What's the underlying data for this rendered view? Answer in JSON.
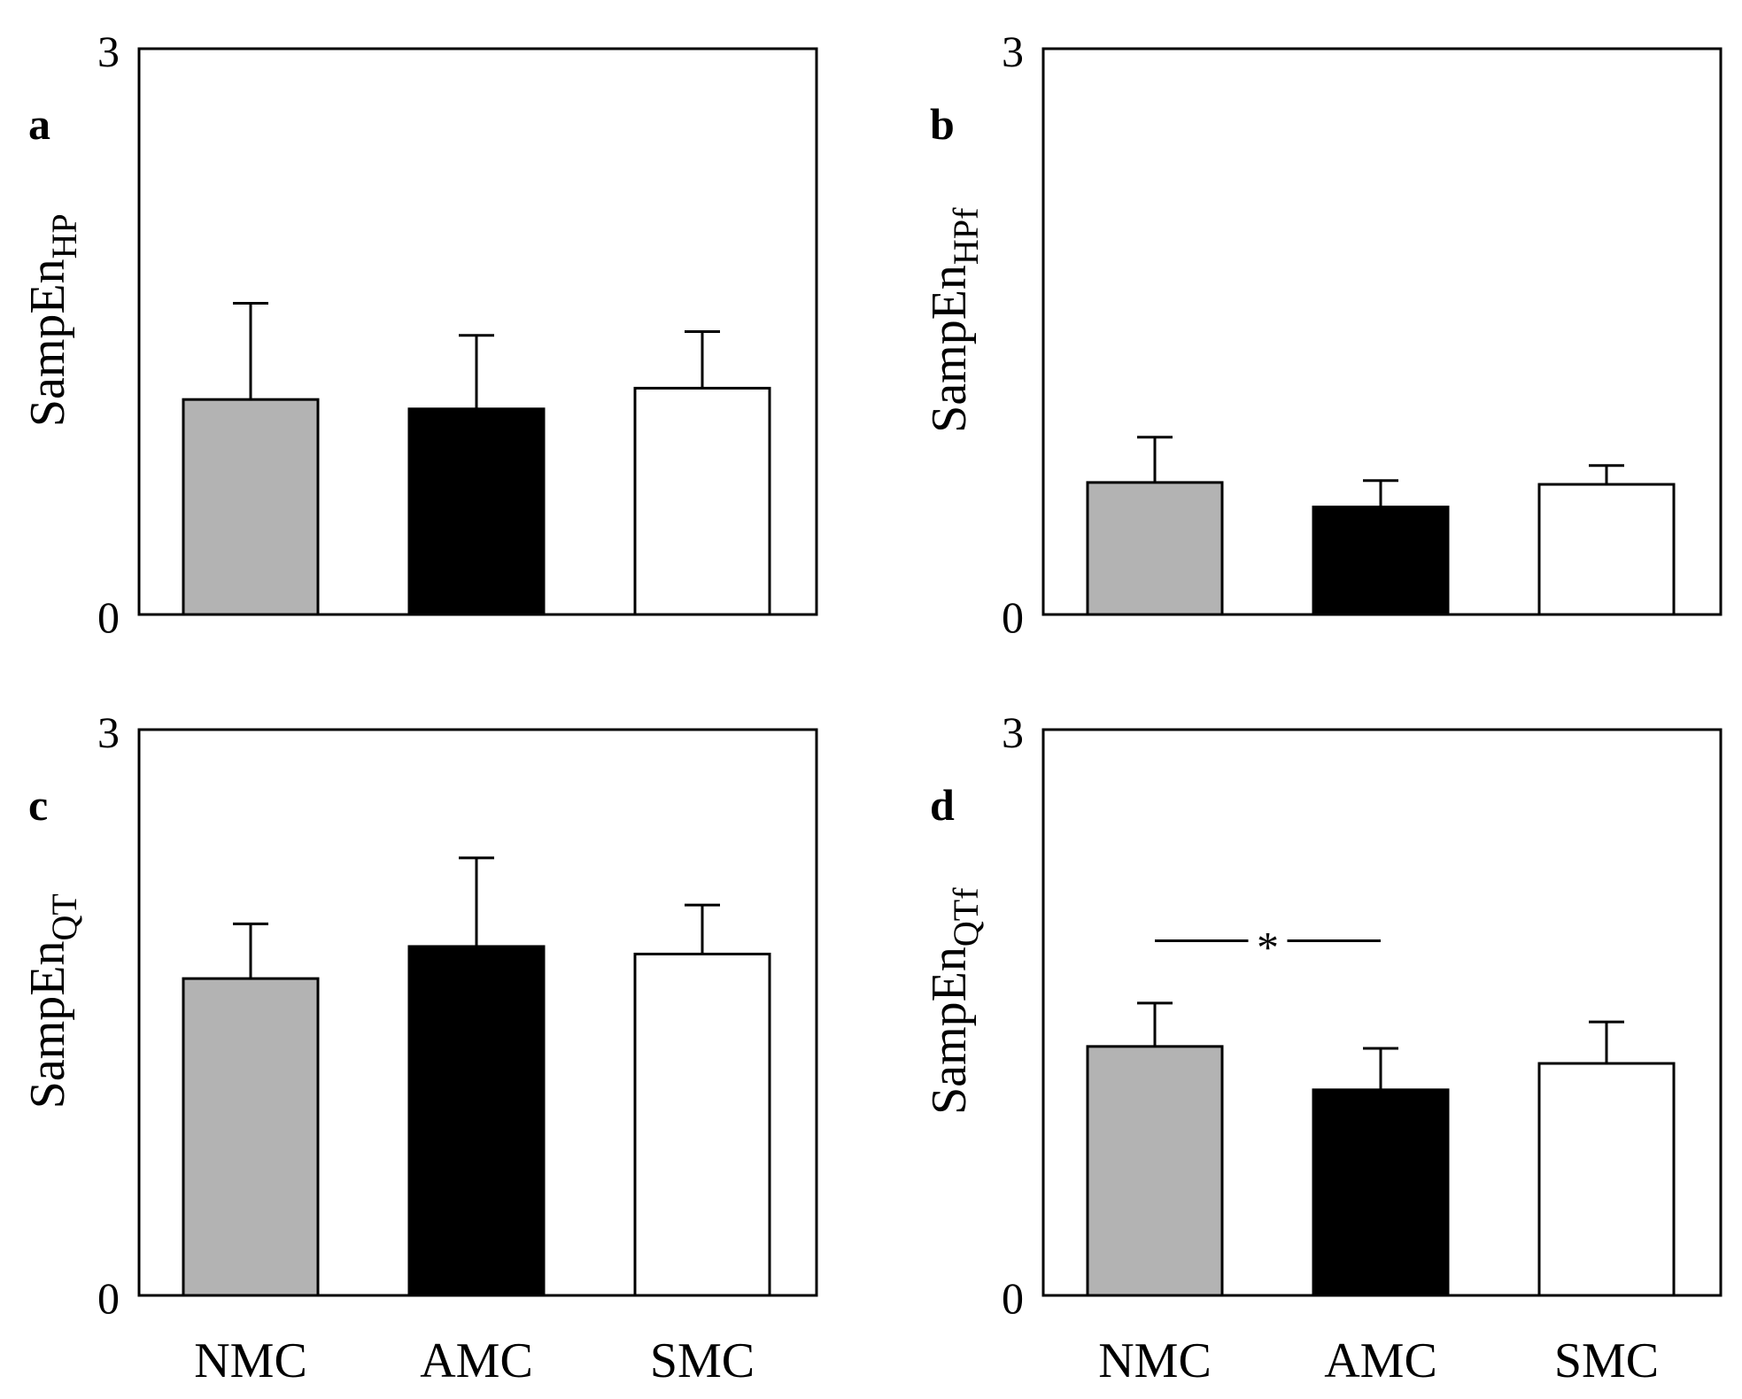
{
  "chart_data": [
    {
      "panel": "a",
      "type": "bar",
      "categories": [
        "NMC",
        "AMC",
        "SMC"
      ],
      "values": [
        1.14,
        1.09,
        1.2
      ],
      "errors": [
        0.51,
        0.39,
        0.3
      ],
      "colors": [
        "#b3b3b3",
        "#000000",
        "#ffffff"
      ],
      "ylabel": {
        "main": "SampEn",
        "sub": "HP"
      },
      "ylim": [
        0,
        3
      ],
      "yticks": [
        "0",
        "3"
      ],
      "show_categories": false
    },
    {
      "panel": "b",
      "type": "bar",
      "categories": [
        "NMC",
        "AMC",
        "SMC"
      ],
      "values": [
        0.7,
        0.57,
        0.69
      ],
      "errors": [
        0.24,
        0.14,
        0.1
      ],
      "colors": [
        "#b3b3b3",
        "#000000",
        "#ffffff"
      ],
      "ylabel": {
        "main": "SampEn",
        "sub": "HPf"
      },
      "ylim": [
        0,
        3
      ],
      "yticks": [
        "0",
        "3"
      ],
      "show_categories": false
    },
    {
      "panel": "c",
      "type": "bar",
      "categories": [
        "NMC",
        "AMC",
        "SMC"
      ],
      "values": [
        1.68,
        1.85,
        1.81
      ],
      "errors": [
        0.29,
        0.47,
        0.26
      ],
      "colors": [
        "#b3b3b3",
        "#000000",
        "#ffffff"
      ],
      "ylabel": {
        "main": "SampEn",
        "sub": "QT"
      },
      "ylim": [
        0,
        3
      ],
      "yticks": [
        "0",
        "3"
      ],
      "show_categories": true
    },
    {
      "panel": "d",
      "type": "bar",
      "categories": [
        "NMC",
        "AMC",
        "SMC"
      ],
      "values": [
        1.32,
        1.09,
        1.23
      ],
      "errors": [
        0.23,
        0.22,
        0.22
      ],
      "colors": [
        "#b3b3b3",
        "#000000",
        "#ffffff"
      ],
      "ylabel": {
        "main": "SampEn",
        "sub": "QTf"
      },
      "ylim": [
        0,
        3
      ],
      "yticks": [
        "0",
        "3"
      ],
      "show_categories": true,
      "significance": {
        "from": "NMC",
        "to": "AMC",
        "value": 1.88,
        "label": "*"
      }
    }
  ]
}
